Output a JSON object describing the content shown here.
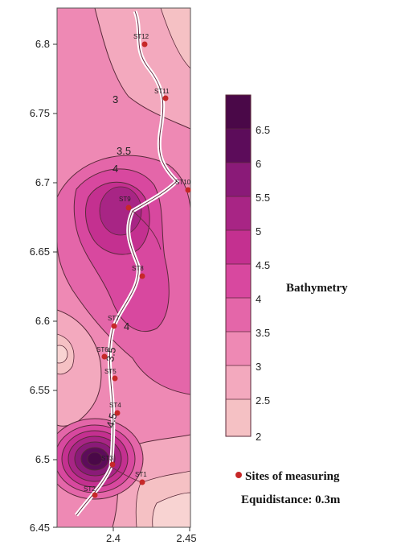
{
  "map": {
    "y_ticks": [
      "6.8",
      "6.75",
      "6.7",
      "6.65",
      "6.6",
      "6.55",
      "6.5",
      "6.45"
    ],
    "x_ticks": [
      "2.4",
      "2.45"
    ],
    "contour_labels": [
      "3",
      "3.5",
      "4",
      "4",
      "3.5",
      "4.5"
    ],
    "sites": [
      {
        "label": "ST12"
      },
      {
        "label": "ST11"
      },
      {
        "label": "ST10"
      },
      {
        "label": "ST9"
      },
      {
        "label": "ST8"
      },
      {
        "label": "ST7"
      },
      {
        "label": "ST6"
      },
      {
        "label": "ST5"
      },
      {
        "label": "ST4"
      },
      {
        "label": "ST3"
      },
      {
        "label": "ST2"
      },
      {
        "label": "ST1"
      }
    ],
    "colors": {
      "level_2": "#f8d3d2",
      "level_2_5": "#f5c1c4",
      "level_3": "#f3a9be",
      "level_3_5": "#ee89b4",
      "level_4": "#e466a9",
      "level_4_5": "#d8489f",
      "level_5": "#c43090",
      "level_5_5": "#a82585",
      "level_6": "#8a1a78",
      "level_6_5": "#5c0c5a",
      "site_marker": "#c62828"
    }
  },
  "legend": {
    "scale_values": [
      "6.5",
      "6",
      "5.5",
      "5",
      "4.5",
      "4",
      "3.5",
      "3",
      "2.5",
      "2"
    ],
    "title": "Bathymetry",
    "sites_label": "Sites of measuring",
    "equidistance_label": "Equidistance: 0.3m"
  }
}
